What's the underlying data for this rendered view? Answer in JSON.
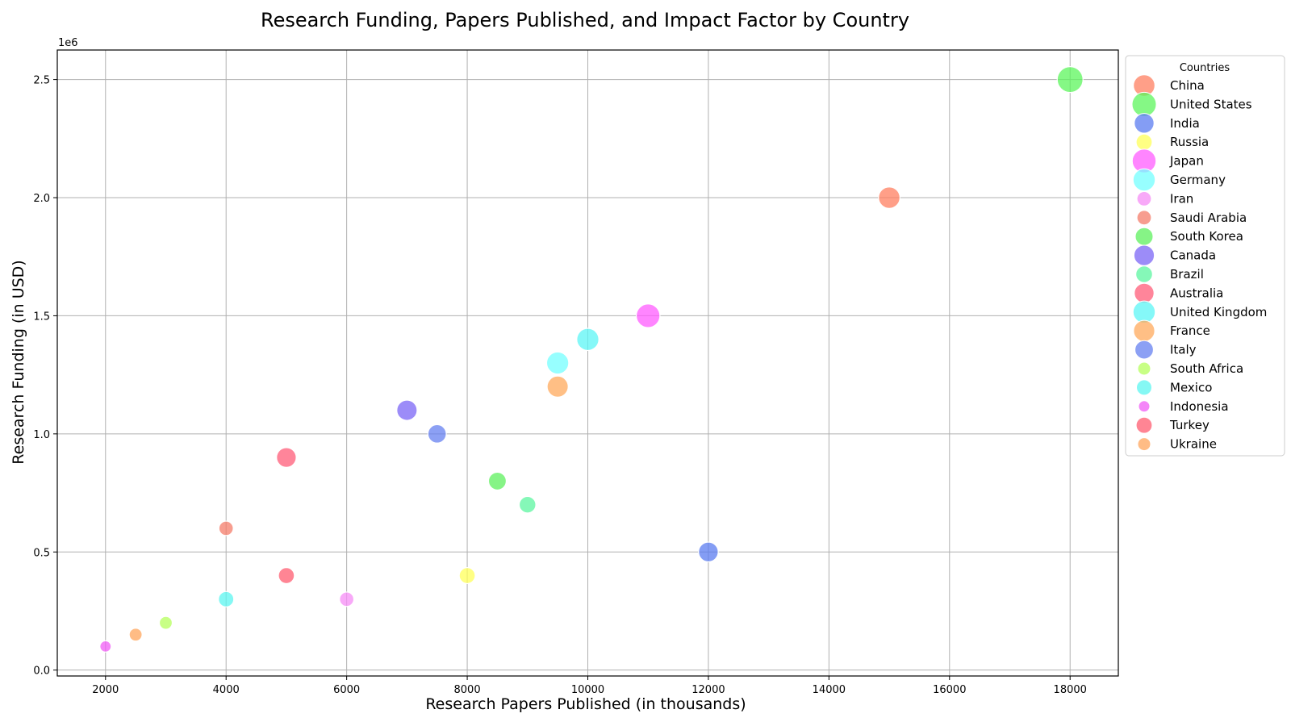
{
  "chart_data": {
    "type": "scatter",
    "title": "Research Funding, Papers Published, and Impact Factor by Country",
    "xlabel": "Research Papers Published (in thousands)",
    "ylabel": "Research Funding (in USD)",
    "y_offset_label": "1e6",
    "xlim": [
      1200,
      18800
    ],
    "ylim": [
      -25000,
      2625000
    ],
    "x_ticks": [
      2000,
      4000,
      6000,
      8000,
      10000,
      12000,
      14000,
      16000,
      18000
    ],
    "x_tick_labels": [
      "2000",
      "4000",
      "6000",
      "8000",
      "10000",
      "12000",
      "14000",
      "16000",
      "18000"
    ],
    "y_ticks": [
      0,
      500000,
      1000000,
      1500000,
      2000000,
      2500000
    ],
    "y_tick_labels": [
      "0.0",
      "0.5",
      "1.0",
      "1.5",
      "2.0",
      "2.5"
    ],
    "grid": true,
    "legend_title": "Countries",
    "legend_position": "outside-right",
    "series": [
      {
        "name": "China",
        "x": 15000,
        "y": 2000000,
        "size": 0.78,
        "color": "#ff7f60"
      },
      {
        "name": "United States",
        "x": 18000,
        "y": 2500000,
        "size": 0.92,
        "color": "#5cf55c"
      },
      {
        "name": "India",
        "x": 12000,
        "y": 500000,
        "size": 0.72,
        "color": "#5b7cf0"
      },
      {
        "name": "Russia",
        "x": 8000,
        "y": 400000,
        "size": 0.6,
        "color": "#ffff5a"
      },
      {
        "name": "Japan",
        "x": 11000,
        "y": 1500000,
        "size": 0.85,
        "color": "#ff5cff"
      },
      {
        "name": "Germany",
        "x": 9500,
        "y": 1300000,
        "size": 0.8,
        "color": "#74ffff"
      },
      {
        "name": "Iran",
        "x": 6000,
        "y": 300000,
        "size": 0.55,
        "color": "#f68cf6"
      },
      {
        "name": "Saudi Arabia",
        "x": 4000,
        "y": 600000,
        "size": 0.55,
        "color": "#f47c6a"
      },
      {
        "name": "South Korea",
        "x": 8500,
        "y": 800000,
        "size": 0.66,
        "color": "#5ef05e"
      },
      {
        "name": "Canada",
        "x": 7000,
        "y": 1100000,
        "size": 0.74,
        "color": "#7b66f5"
      },
      {
        "name": "Brazil",
        "x": 9000,
        "y": 700000,
        "size": 0.62,
        "color": "#5cf5a0"
      },
      {
        "name": "Australia",
        "x": 5000,
        "y": 900000,
        "size": 0.72,
        "color": "#ff5c78"
      },
      {
        "name": "United Kingdom",
        "x": 10000,
        "y": 1400000,
        "size": 0.8,
        "color": "#5cf5f5"
      },
      {
        "name": "France",
        "x": 9500,
        "y": 1200000,
        "size": 0.77,
        "color": "#ffaa5c"
      },
      {
        "name": "Italy",
        "x": 7500,
        "y": 1000000,
        "size": 0.68,
        "color": "#6680f0"
      },
      {
        "name": "South Africa",
        "x": 3000,
        "y": 200000,
        "size": 0.5,
        "color": "#b6ff5c"
      },
      {
        "name": "Mexico",
        "x": 4000,
        "y": 300000,
        "size": 0.58,
        "color": "#5cf5f0"
      },
      {
        "name": "Indonesia",
        "x": 2000,
        "y": 100000,
        "size": 0.45,
        "color": "#f05cf5"
      },
      {
        "name": "Turkey",
        "x": 5000,
        "y": 400000,
        "size": 0.6,
        "color": "#ff5c70"
      },
      {
        "name": "Ukraine",
        "x": 2500,
        "y": 150000,
        "size": 0.5,
        "color": "#ffa55c"
      }
    ]
  }
}
